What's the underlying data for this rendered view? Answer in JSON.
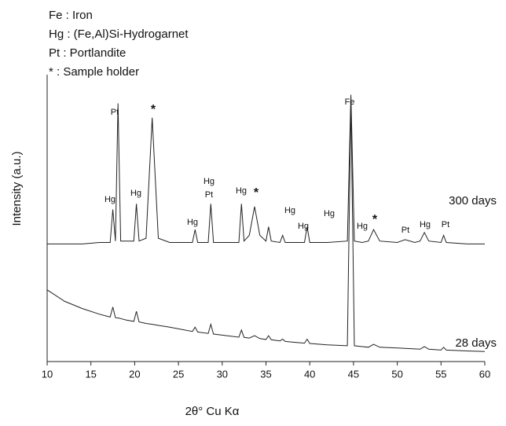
{
  "chart_data": {
    "type": "line",
    "notes": [
      "Fe : Iron",
      "Hg : (Fe,Al)Si-Hydrogarnet",
      "Pt : Portlandite",
      "* :  Sample holder"
    ],
    "x_label": "2θ° Cu Kα",
    "y_label": "Intensity (a.u.)",
    "annotations": [
      "Pt",
      "*",
      "Hg",
      "Hg",
      "Hg",
      "Hg",
      "Pt",
      "Hg",
      "*",
      "Hg",
      "Hg",
      "Hg",
      "Fe",
      "Hg",
      "*",
      "Pt",
      "Hg",
      "Pt"
    ],
    "xlim": [
      10,
      60
    ],
    "xticks": [
      10,
      15,
      20,
      25,
      30,
      35,
      40,
      45,
      50,
      55,
      60
    ],
    "ylim": [
      0,
      100
    ],
    "x": [
      10,
      12,
      14,
      16,
      17.2,
      17.5,
      17.8,
      18.1,
      18.4,
      19,
      19.9,
      20.2,
      20.5,
      21.3,
      22,
      22.7,
      24,
      26.6,
      26.9,
      27.2,
      28.4,
      28.7,
      29,
      30,
      31.9,
      32.2,
      32.5,
      33.1,
      33.7,
      34.3,
      35,
      35.3,
      35.6,
      36.6,
      36.9,
      37.2,
      38,
      39.4,
      39.7,
      40,
      42,
      44.3,
      44.7,
      45.1,
      46,
      46.7,
      47.3,
      48,
      50,
      50.9,
      52,
      52.6,
      53.1,
      53.6,
      55,
      55.3,
      55.6,
      58,
      60
    ],
    "series": [
      {
        "name": "300 days",
        "color": "#222222",
        "values": [
          41,
          41,
          41,
          41.5,
          41.5,
          53,
          42,
          90,
          42,
          42,
          42,
          55,
          42,
          43,
          85,
          43,
          41.5,
          41.5,
          46,
          41.5,
          41.5,
          55,
          41.5,
          41.5,
          41.5,
          55,
          42,
          44,
          54,
          44,
          42,
          47,
          42,
          41.5,
          44,
          41.5,
          41.5,
          41.5,
          47,
          41.5,
          41.5,
          42,
          93,
          42,
          41.5,
          42,
          46,
          42,
          41.5,
          42.5,
          41.5,
          42,
          45,
          42,
          41.5,
          44,
          41.5,
          41,
          41
        ]
      },
      {
        "name": "28 days",
        "color": "#222222",
        "values": [
          25,
          21,
          18.5,
          16.5,
          15.5,
          19,
          15.3,
          15.2,
          15,
          14.5,
          14,
          17.5,
          13.8,
          13.3,
          13,
          12.6,
          12,
          10.5,
          12,
          10.3,
          9.8,
          13,
          9.6,
          9.2,
          8.5,
          11,
          8.4,
          8.2,
          9,
          8,
          7.7,
          9,
          7.6,
          7.2,
          7.8,
          7,
          6.8,
          6.4,
          7.8,
          6.3,
          5.8,
          5.5,
          91,
          5.5,
          5.2,
          5,
          6,
          5,
          4.7,
          4.6,
          4.4,
          4.3,
          5.2,
          4.3,
          4,
          5,
          4,
          3.7,
          3.5
        ]
      }
    ]
  }
}
